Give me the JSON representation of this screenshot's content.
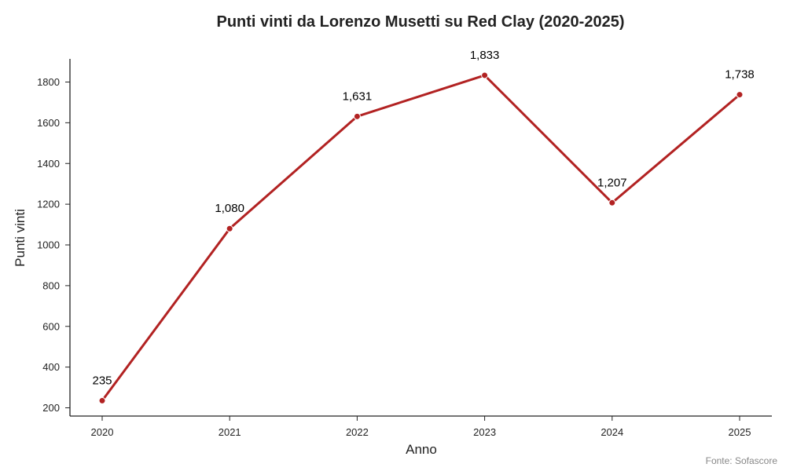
{
  "chart_data": {
    "type": "line",
    "title": "Punti vinti da Lorenzo Musetti su Red Clay (2020-2025)",
    "xlabel": "Anno",
    "ylabel": "Punti vinti",
    "categories": [
      "2020",
      "2021",
      "2022",
      "2023",
      "2024",
      "2025"
    ],
    "values": [
      235,
      1080,
      1631,
      1833,
      1207,
      1738
    ],
    "data_labels": [
      "235",
      "1,080",
      "1,631",
      "1,833",
      "1,207",
      "1,738"
    ],
    "yticks": [
      "200",
      "400",
      "600",
      "800",
      "1000",
      "1200",
      "1400",
      "1600",
      "1800"
    ],
    "ylim": [
      150,
      1910
    ],
    "grid": false,
    "legend": "none",
    "line_color": "#b22222",
    "source": "Fonte: Sofascore"
  }
}
